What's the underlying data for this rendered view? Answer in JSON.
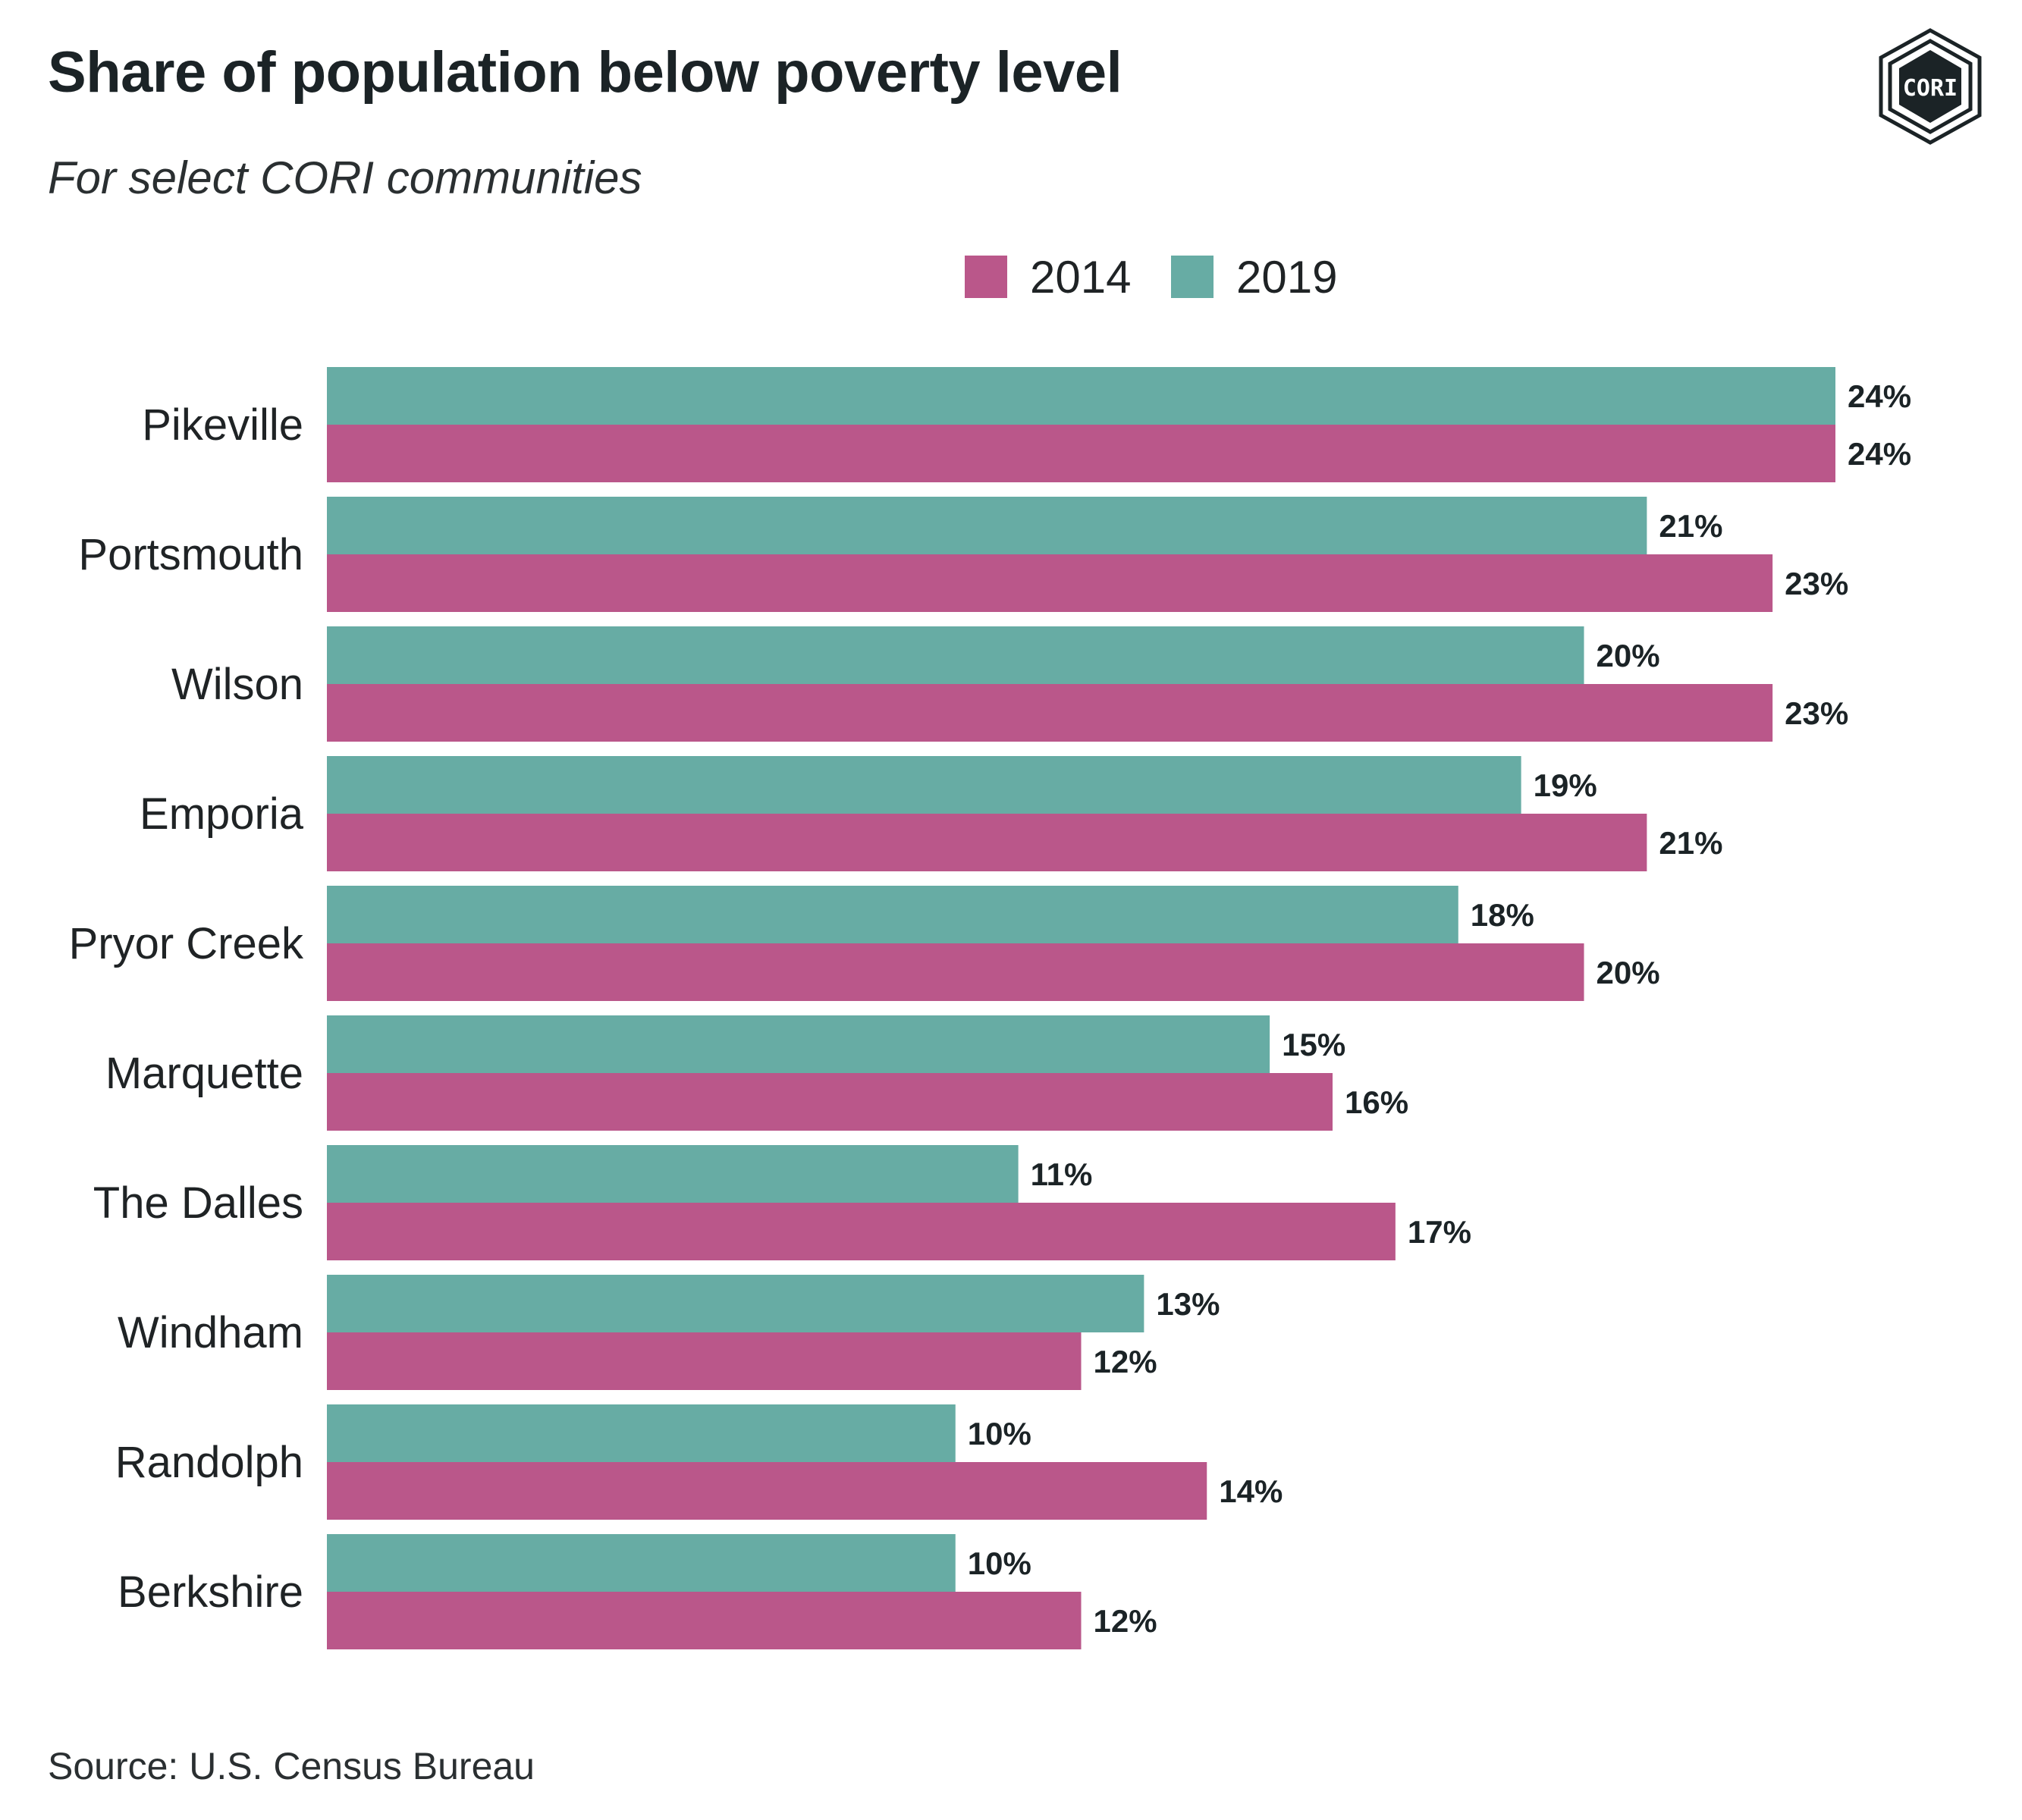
{
  "chart_data": {
    "type": "bar",
    "orientation": "horizontal",
    "title": "Share of population below poverty level",
    "subtitle": "For select CORI communities",
    "source": "Source: U.S. Census Bureau",
    "categories": [
      "Pikeville",
      "Portsmouth",
      "Wilson",
      "Emporia",
      "Pryor Creek",
      "Marquette",
      "The Dalles",
      "Windham",
      "Randolph",
      "Berkshire"
    ],
    "series": [
      {
        "name": "2019",
        "color": "#67aca4",
        "values": [
          24,
          21,
          20,
          19,
          18,
          15,
          11,
          13,
          10,
          10
        ],
        "labels": [
          "24%",
          "21%",
          "20%",
          "19%",
          "18%",
          "15%",
          "11%",
          "13%",
          "10%",
          "10%"
        ]
      },
      {
        "name": "2014",
        "color": "#ba578a",
        "values": [
          24,
          23,
          23,
          21,
          20,
          16,
          17,
          12,
          14,
          12
        ],
        "labels": [
          "24%",
          "23%",
          "23%",
          "21%",
          "20%",
          "16%",
          "17%",
          "12%",
          "14%",
          "12%"
        ]
      }
    ],
    "legend": [
      {
        "label": "2014",
        "color": "#ba578a"
      },
      {
        "label": "2019",
        "color": "#67aca4"
      }
    ],
    "legend_position": "top-center",
    "xlim": [
      0,
      24
    ],
    "grid": false
  },
  "logo": {
    "text": "CORI"
  }
}
